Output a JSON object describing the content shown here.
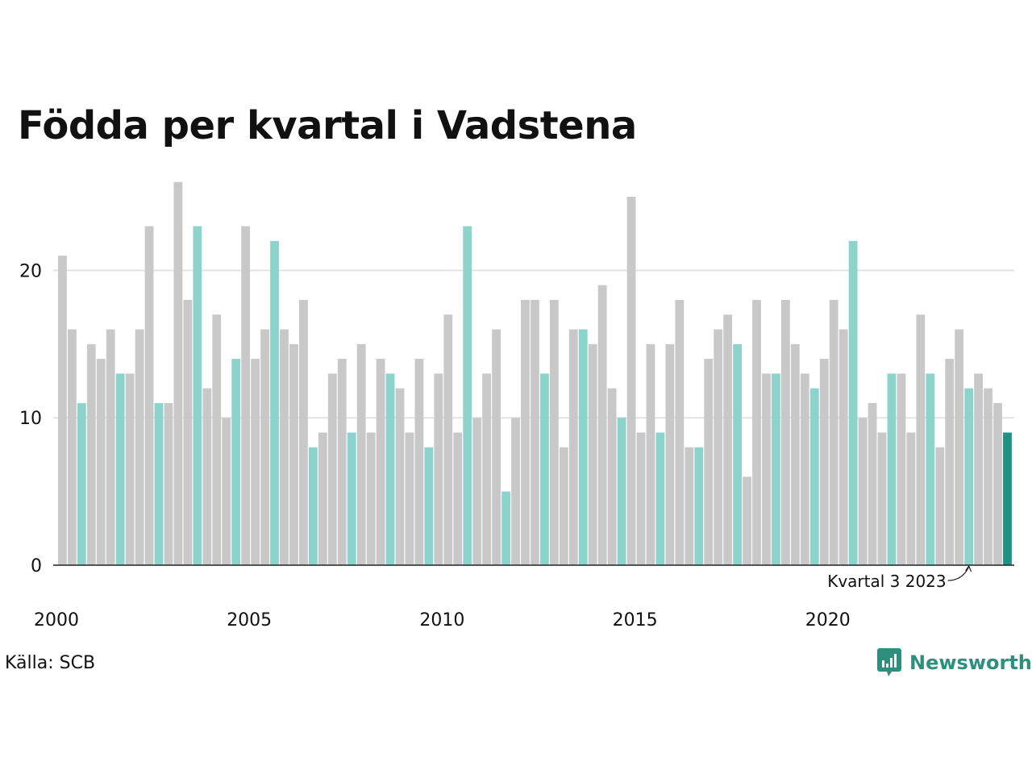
{
  "chart_data": {
    "type": "bar",
    "title": "Födda per kvartal i Vadstena",
    "xlabel": "",
    "ylabel": "",
    "ylim": [
      0,
      26
    ],
    "yticks": [
      0,
      10,
      20
    ],
    "xtick_labels": [
      "2000",
      "2005",
      "2010",
      "2015",
      "2020"
    ],
    "grid": true,
    "start_year": 2000,
    "colors": {
      "default": "#c8c8c8",
      "highlight_quarter": "#8cd3cb",
      "latest": "#1f9383"
    },
    "values": [
      21,
      16,
      11,
      15,
      14,
      16,
      13,
      13,
      16,
      23,
      11,
      11,
      26,
      18,
      23,
      12,
      17,
      10,
      14,
      23,
      14,
      16,
      22,
      16,
      15,
      18,
      8,
      9,
      13,
      14,
      9,
      15,
      9,
      14,
      13,
      12,
      9,
      14,
      8,
      13,
      17,
      9,
      23,
      10,
      13,
      16,
      5,
      10,
      18,
      18,
      13,
      18,
      8,
      16,
      16,
      15,
      19,
      12,
      10,
      25,
      9,
      15,
      9,
      15,
      18,
      8,
      8,
      14,
      16,
      17,
      15,
      6,
      18,
      13,
      13,
      18,
      15,
      13,
      12,
      14,
      18,
      16,
      22,
      10,
      11,
      9,
      13,
      13,
      9,
      17,
      13,
      8,
      14,
      16,
      12,
      13,
      12,
      11,
      9
    ],
    "annotation": "Kvartal 3 2023"
  },
  "source": "Källa: SCB",
  "brand": {
    "name": "Newsworthy",
    "icon": "bar-chart-bubble-icon",
    "color": "#2f8f7d"
  }
}
